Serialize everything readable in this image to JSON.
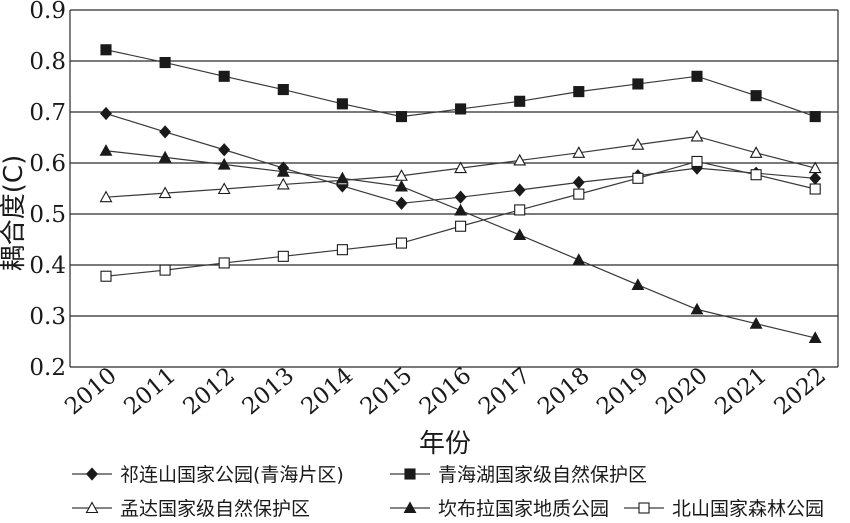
{
  "chart_data": {
    "type": "line",
    "xlabel": "年份",
    "ylabel": "耦合度(C)",
    "ylim": [
      0.2,
      0.9
    ],
    "yticks": [
      "0.2",
      "0.3",
      "0.4",
      "0.5",
      "0.6",
      "0.7",
      "0.8",
      "0.9"
    ],
    "grid": "horizontal",
    "legend_position": "bottom",
    "categories": [
      "2010",
      "2011",
      "2012",
      "2013",
      "2014",
      "2015",
      "2016",
      "2017",
      "2018",
      "2019",
      "2020",
      "2021",
      "2022"
    ],
    "series": [
      {
        "name": "祁连山国家公园(青海片区)",
        "marker": "filled-diamond",
        "values": [
          0.697,
          0.661,
          0.626,
          0.59,
          0.555,
          0.521,
          0.533,
          0.547,
          0.562,
          0.575,
          0.59,
          0.58,
          0.57
        ]
      },
      {
        "name": "青海湖国家级自然保护区",
        "marker": "filled-square",
        "values": [
          0.822,
          0.797,
          0.77,
          0.744,
          0.716,
          0.691,
          0.706,
          0.721,
          0.74,
          0.755,
          0.77,
          0.732,
          0.691
        ]
      },
      {
        "name": "孟达国家级自然保护区",
        "marker": "open-triangle",
        "values": [
          0.533,
          0.541,
          0.549,
          0.558,
          0.566,
          0.575,
          0.59,
          0.605,
          0.62,
          0.636,
          0.652,
          0.62,
          0.59
        ]
      },
      {
        "name": "坎布拉国家地质公园",
        "marker": "filled-triangle",
        "values": [
          0.624,
          0.611,
          0.597,
          0.583,
          0.57,
          0.554,
          0.507,
          0.459,
          0.41,
          0.361,
          0.313,
          0.285,
          0.257
        ]
      },
      {
        "name": "北山国家森林公园",
        "marker": "open-square",
        "values": [
          0.378,
          0.39,
          0.404,
          0.417,
          0.43,
          0.443,
          0.476,
          0.508,
          0.539,
          0.57,
          0.603,
          0.577,
          0.549
        ]
      }
    ]
  }
}
